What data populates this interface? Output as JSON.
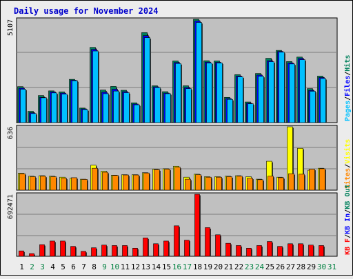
{
  "title": "Daily usage for November 2024",
  "colors": {
    "background": "#ececec",
    "panel": "#c0c0c0",
    "grid": "#7c7c7c",
    "title": "#0000cc",
    "hits": "#00805c",
    "files": "#0000ff",
    "pages": "#00c0ff",
    "visits": "#ffff00",
    "sites": "#ff8800",
    "kb": "#ff0000",
    "axis_day": "#000000",
    "axis_weekend": "#008040"
  },
  "chart_data": [
    {
      "type": "bar",
      "panel": "hits-files-pages",
      "ymax_label": "5107",
      "ylim": [
        0,
        5107
      ],
      "legend": [
        {
          "label": "Pages",
          "color": "#00c0ff"
        },
        {
          "label": "Files",
          "color": "#0000ff"
        },
        {
          "label": "Hits",
          "color": "#00805c"
        }
      ],
      "categories": [
        "1",
        "2",
        "3",
        "4",
        "5",
        "6",
        "7",
        "8",
        "9",
        "10",
        "11",
        "12",
        "13",
        "14",
        "15",
        "16",
        "17",
        "18",
        "19",
        "20",
        "21",
        "22",
        "23",
        "24",
        "25",
        "26",
        "27",
        "28",
        "29",
        "30",
        "31"
      ],
      "series": [
        {
          "name": "Hits",
          "values": [
            1780,
            560,
            1340,
            1570,
            1520,
            2140,
            720,
            3720,
            1610,
            1790,
            1600,
            980,
            4450,
            1820,
            1530,
            3050,
            1820,
            5107,
            3060,
            3050,
            1250,
            2370,
            1020,
            2430,
            3180,
            3570,
            3020,
            3240,
            1680,
            2300,
            0
          ]
        },
        {
          "name": "Files",
          "values": [
            1700,
            490,
            1250,
            1520,
            1460,
            2100,
            680,
            3620,
            1500,
            1650,
            1530,
            920,
            4300,
            1770,
            1460,
            2970,
            1730,
            5020,
            2990,
            2980,
            1190,
            2300,
            960,
            2350,
            3060,
            3520,
            2950,
            3170,
            1590,
            2230,
            0
          ]
        },
        {
          "name": "Pages",
          "values": [
            1650,
            450,
            1230,
            1470,
            1410,
            2070,
            640,
            3540,
            1430,
            1560,
            1480,
            880,
            4200,
            1730,
            1430,
            2920,
            1680,
            4950,
            2950,
            2950,
            1150,
            2260,
            930,
            2290,
            3010,
            3480,
            2900,
            3110,
            1550,
            2180,
            0
          ]
        }
      ]
    },
    {
      "type": "bar",
      "panel": "visits-sites",
      "ymax_label": "636",
      "ylim": [
        0,
        636
      ],
      "legend": [
        {
          "label": "Sites",
          "color": "#ff8800"
        },
        {
          "label": "Visits",
          "color": "#ffff00"
        }
      ],
      "categories": [
        "1",
        "2",
        "3",
        "4",
        "5",
        "6",
        "7",
        "8",
        "9",
        "10",
        "11",
        "12",
        "13",
        "14",
        "15",
        "16",
        "17",
        "18",
        "19",
        "20",
        "21",
        "22",
        "23",
        "24",
        "25",
        "26",
        "27",
        "28",
        "29",
        "30",
        "31"
      ],
      "series": [
        {
          "name": "Visits",
          "values": [
            170,
            140,
            145,
            140,
            130,
            120,
            110,
            250,
            190,
            150,
            155,
            155,
            175,
            210,
            215,
            240,
            130,
            160,
            135,
            135,
            140,
            145,
            135,
            110,
            290,
            130,
            636,
            420,
            200,
            220,
            0
          ]
        },
        {
          "name": "Sites",
          "values": [
            165,
            135,
            140,
            135,
            120,
            125,
            108,
            220,
            180,
            148,
            152,
            152,
            172,
            205,
            210,
            230,
            110,
            155,
            130,
            130,
            135,
            140,
            120,
            105,
            140,
            125,
            165,
            160,
            210,
            215,
            0
          ]
        }
      ]
    },
    {
      "type": "bar",
      "panel": "kbytes",
      "ymax_label": "692471",
      "ylim": [
        0,
        692471
      ],
      "legend": [
        {
          "label": "KB F",
          "color": "#ff0000"
        },
        {
          "label": "KB In",
          "color": "#0000ff"
        },
        {
          "label": "KB Out",
          "color": "#00805c"
        }
      ],
      "categories": [
        "1",
        "2",
        "3",
        "4",
        "5",
        "6",
        "7",
        "8",
        "9",
        "10",
        "11",
        "12",
        "13",
        "14",
        "15",
        "16",
        "17",
        "18",
        "19",
        "20",
        "21",
        "22",
        "23",
        "24",
        "25",
        "26",
        "27",
        "28",
        "29",
        "30",
        "31"
      ],
      "series": [
        {
          "name": "KB F",
          "values": [
            60000,
            30000,
            130000,
            170000,
            170000,
            110000,
            55000,
            95000,
            125000,
            120000,
            120000,
            90000,
            205000,
            140000,
            170000,
            340000,
            180000,
            692471,
            320000,
            240000,
            145000,
            120000,
            90000,
            120000,
            165000,
            110000,
            140000,
            140000,
            125000,
            120000,
            0
          ]
        }
      ]
    }
  ],
  "x_axis": {
    "labels": [
      "1",
      "2",
      "3",
      "4",
      "5",
      "6",
      "7",
      "8",
      "9",
      "10",
      "11",
      "12",
      "13",
      "14",
      "15",
      "16",
      "17",
      "18",
      "19",
      "20",
      "21",
      "22",
      "23",
      "24",
      "25",
      "26",
      "27",
      "28",
      "29",
      "30",
      "31"
    ],
    "weekend": [
      false,
      true,
      true,
      false,
      false,
      false,
      false,
      false,
      true,
      true,
      false,
      false,
      false,
      false,
      false,
      true,
      true,
      false,
      false,
      false,
      false,
      false,
      true,
      true,
      false,
      false,
      false,
      false,
      false,
      true,
      true
    ]
  }
}
